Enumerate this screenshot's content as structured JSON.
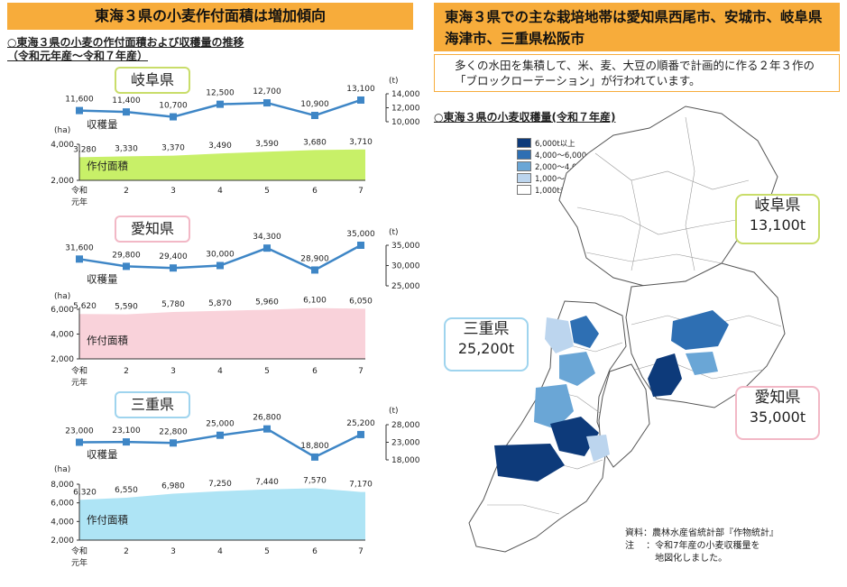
{
  "left_title": "東海３県の小麦作付面積は増加傾向",
  "left_subtitle": "○東海３県の小麦の作付面積および収穫量の推移",
  "left_period": "（令和元年産～令和７年産）",
  "right_title": "東海３県での主な栽培地帯は愛知県西尾市、安城市、岐阜県海津市、三重県松阪市",
  "right_note": "多くの水田を集積して、米、麦、大豆の順番で計画的に作る２年３作の「ブロックローテーション」が行われています。",
  "map_title": "○東海３県の小麦収穫量(令和７年産)",
  "harvest_label": "収穫量",
  "area_label": "作付面積",
  "x_first_label": [
    "令和",
    "元年"
  ],
  "map_legend": [
    {
      "label": "6,000t以上",
      "color": "#0d3a7a"
    },
    {
      "label": "4,000～6,000",
      "color": "#2e6fb3"
    },
    {
      "label": "2,000～4,000",
      "color": "#6aa6d6"
    },
    {
      "label": "1,000～2,000",
      "color": "#bcd5ee"
    },
    {
      "label": "1,000t未満",
      "color": "#ffffff"
    }
  ],
  "callouts": [
    {
      "name": "岐阜県",
      "value": "13,100t",
      "border": "#c9dd6a"
    },
    {
      "name": "三重県",
      "value": "25,200t",
      "border": "#9fd4ee"
    },
    {
      "name": "愛知県",
      "value": "35,000t",
      "border": "#f2b8c6"
    }
  ],
  "source": [
    "資料：農林水産省統計部『作物統計』",
    "注　 ：令和7年産の小麦収穫量を",
    "　　　 地図化しました。"
  ],
  "chart_data": [
    {
      "type": "line",
      "title": "岐阜県",
      "label_border": "#c9dd6a",
      "x": [
        "令和元年",
        "2",
        "3",
        "4",
        "5",
        "6",
        "7"
      ],
      "series": [
        {
          "name": "収穫量",
          "values": [
            11600,
            11400,
            10700,
            12500,
            12700,
            10900,
            13100
          ]
        }
      ],
      "value_labels": [
        "11,600",
        "11,400",
        "10,700",
        "12,500",
        "12,700",
        "10,900",
        "13,100"
      ],
      "ylabel": "(t)",
      "yticks": [
        "14,000",
        "12,000",
        "10,000"
      ],
      "ylim": [
        10000,
        14000
      ],
      "color": "#3e86c6"
    },
    {
      "type": "area",
      "title": "岐阜県",
      "x": [
        "令和元年",
        "2",
        "3",
        "4",
        "5",
        "6",
        "7"
      ],
      "series": [
        {
          "name": "作付面積",
          "values": [
            3280,
            3330,
            3370,
            3490,
            3590,
            3680,
            3710
          ]
        }
      ],
      "value_labels": [
        "3,280",
        "3,330",
        "3,370",
        "3,490",
        "3,590",
        "3,680",
        "3,710"
      ],
      "ylabel": "(ha)",
      "yticks": [
        "4,000",
        "2,000"
      ],
      "ylim": [
        2000,
        4000
      ],
      "color": "#c8f068"
    },
    {
      "type": "line",
      "title": "愛知県",
      "label_border": "#f2b8c6",
      "x": [
        "令和元年",
        "2",
        "3",
        "4",
        "5",
        "6",
        "7"
      ],
      "series": [
        {
          "name": "収穫量",
          "values": [
            31600,
            29800,
            29400,
            30000,
            34300,
            28900,
            35000
          ]
        }
      ],
      "value_labels": [
        "31,600",
        "29,800",
        "29,400",
        "30,000",
        "34,300",
        "28,900",
        "35,000"
      ],
      "ylabel": "(t)",
      "yticks": [
        "35,000",
        "30,000",
        "25,000"
      ],
      "ylim": [
        25000,
        35000
      ],
      "color": "#3e86c6"
    },
    {
      "type": "area",
      "title": "愛知県",
      "x": [
        "令和元年",
        "2",
        "3",
        "4",
        "5",
        "6",
        "7"
      ],
      "series": [
        {
          "name": "作付面積",
          "values": [
            5620,
            5590,
            5780,
            5870,
            5960,
            6100,
            6050
          ]
        }
      ],
      "value_labels": [
        "5,620",
        "5,590",
        "5,780",
        "5,870",
        "5,960",
        "6,100",
        "6,050"
      ],
      "ylabel": "(ha)",
      "yticks": [
        "6,000",
        "4,000",
        "2,000"
      ],
      "ylim": [
        2000,
        6000
      ],
      "color": "#f9d2da"
    },
    {
      "type": "line",
      "title": "三重県",
      "label_border": "#9fd4ee",
      "x": [
        "令和元年",
        "2",
        "3",
        "4",
        "5",
        "6",
        "7"
      ],
      "series": [
        {
          "name": "収穫量",
          "values": [
            23000,
            23100,
            22800,
            25000,
            26800,
            18800,
            25200
          ]
        }
      ],
      "value_labels": [
        "23,000",
        "23,100",
        "22,800",
        "25,000",
        "26,800",
        "18,800",
        "25,200"
      ],
      "ylabel": "(t)",
      "yticks": [
        "28,000",
        "23,000",
        "18,000"
      ],
      "ylim": [
        18000,
        28000
      ],
      "color": "#3e86c6"
    },
    {
      "type": "area",
      "title": "三重県",
      "x": [
        "令和元年",
        "2",
        "3",
        "4",
        "5",
        "6",
        "7"
      ],
      "series": [
        {
          "name": "作付面積",
          "values": [
            6320,
            6550,
            6980,
            7250,
            7440,
            7570,
            7170
          ]
        }
      ],
      "value_labels": [
        "6,320",
        "6,550",
        "6,980",
        "7,250",
        "7,440",
        "7,570",
        "7,170"
      ],
      "ylabel": "(ha)",
      "yticks": [
        "8,000",
        "6,000",
        "4,000",
        "2,000"
      ],
      "ylim": [
        2000,
        8000
      ],
      "color": "#aee4f5"
    }
  ]
}
